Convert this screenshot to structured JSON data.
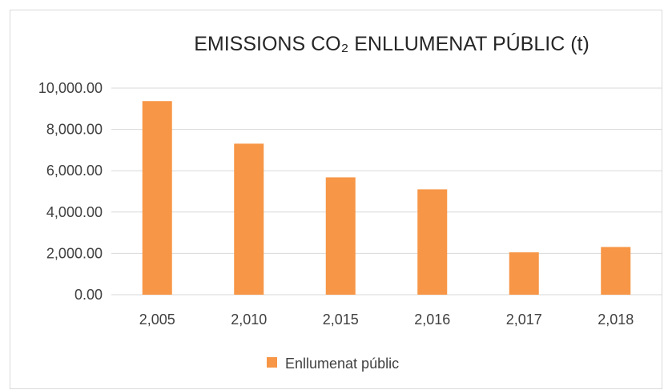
{
  "chart_data": {
    "type": "bar",
    "title": "EMISSIONS CO₂ ENLLUMENAT PÚBLIC (t)",
    "categories": [
      "2,005",
      "2,010",
      "2,015",
      "2,016",
      "2,017",
      "2,018"
    ],
    "series": [
      {
        "name": "Enllumenat públic",
        "values": [
          9370,
          7310,
          5680,
          5100,
          2050,
          2310
        ],
        "color": "#f79646"
      }
    ],
    "yticks": [
      "0.00",
      "2,000.00",
      "4,000.00",
      "6,000.00",
      "8,000.00",
      "10,000.00"
    ],
    "ylim": [
      0,
      10000
    ],
    "grid": true,
    "legend_position": "bottom"
  }
}
